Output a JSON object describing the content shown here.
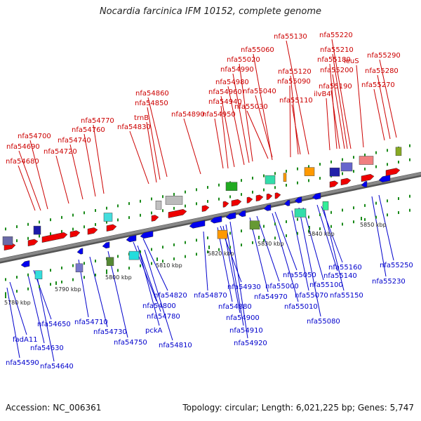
{
  "title": "Nocardia farcinica IFM 10152, complete genome",
  "footer": {
    "accession": "Accession: NC_006361",
    "summary": "Topology: circular; Length: 6,021,225 bp; Genes: 5,747"
  },
  "colors": {
    "forward_label": "#cc0000",
    "reverse_label": "#0000cc",
    "forward_feature": "#ee0000",
    "reverse_feature": "#0000ee",
    "backbone": "#888888",
    "tick": "#1a8a1a"
  },
  "scale_labels": [
    "5780 kbp",
    "5790 kbp",
    "5800 kbp",
    "5810 kbp",
    "5820 kbp",
    "5830 kbp",
    "5840 kbp",
    "5850 kbp"
  ],
  "forward_genes": [
    "nfa54680",
    "nfa54690",
    "nfa54700",
    "nfa54720",
    "nfa54740",
    "nfa54760",
    "nfa54770",
    "nfa54830",
    "trnB",
    "nfa54850",
    "nfa54860",
    "nfa54890",
    "nfa54950",
    "nfa54940",
    "nfa54960",
    "nfa54980",
    "nfa54990",
    "nfa55020",
    "nfa55030",
    "nfa55040",
    "nfa55060",
    "nfa55090",
    "nfa55110",
    "nfa55120",
    "nfa55130",
    "ilvB4",
    "nfa55190",
    "nfa55180",
    "nfa55200",
    "nfa55210",
    "nfa55220",
    "leuS",
    "nfa55270",
    "nfa55280",
    "nfa55290"
  ],
  "reverse_genes": [
    "nfa54590",
    "fadA11",
    "nfa54630",
    "nfa54640",
    "nfa54650",
    "nfa54710",
    "nfa54730",
    "nfa54750",
    "pckA",
    "nfa54810",
    "nfa54780",
    "nfa54800",
    "nfa54820",
    "nfa54870",
    "nfa54880",
    "nfa54900",
    "nfa54910",
    "nfa54920",
    "nfa54930",
    "nfa54970",
    "nfa55000",
    "nfa55010",
    "nfa55050",
    "nfa55070",
    "nfa55080",
    "nfa55100",
    "nfa55140",
    "nfa55150",
    "nfa55160",
    "nfa55230",
    "nfa55250"
  ]
}
